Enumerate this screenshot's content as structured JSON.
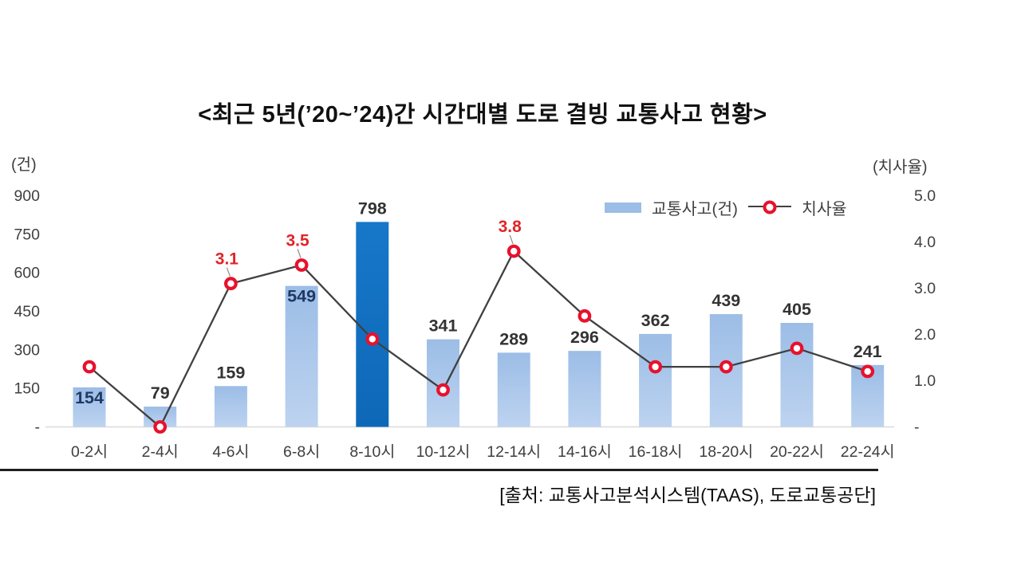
{
  "title": "<최근 5년(’20~’24)간 시간대별 도로 결빙 교통사고 현황>",
  "left_axis": {
    "unit": "(건)",
    "ticks": [
      "900",
      "750",
      "600",
      "450",
      "300",
      "150",
      "-"
    ],
    "values": [
      900,
      750,
      600,
      450,
      300,
      150,
      0
    ]
  },
  "right_axis": {
    "unit": "(치사율)",
    "ticks": [
      "5.0",
      "4.0",
      "3.0",
      "2.0",
      "1.0",
      "-"
    ],
    "values": [
      5,
      4,
      3,
      2,
      1,
      0
    ]
  },
  "legend": {
    "bars": "교통사고(건)",
    "line": "치사율"
  },
  "source": "[출처: 교통사고분석시스템(TAAS), 도로교통공단]",
  "colors": {
    "bar_top": "#9cbde6",
    "bar_bottom": "#bdd3f0",
    "bar_highlight_top": "#1777c9",
    "bar_highlight_bottom": "#0e68b8",
    "line": "#404040",
    "marker_ring": "#e8112d",
    "rate_label": "#e02528",
    "axis_line": "#d9d9d9",
    "leader_line": "#8a8a8a"
  },
  "chart_data": {
    "type": "bar+line combo",
    "title": "최근 5년(’20~’24)간 시간대별 도로 결빙 교통사고 현황",
    "categories": [
      "0-2시",
      "2-4시",
      "4-6시",
      "6-8시",
      "8-10시",
      "10-12시",
      "12-14시",
      "14-16시",
      "16-18시",
      "18-20시",
      "20-22시",
      "22-24시"
    ],
    "series": [
      {
        "name": "교통사고(건)",
        "type": "bar",
        "axis": "left",
        "values": [
          154,
          79,
          159,
          549,
          798,
          341,
          289,
          296,
          362,
          439,
          405,
          241
        ],
        "highlight_index": 4,
        "inside_label_indices": [
          0,
          3
        ]
      },
      {
        "name": "치사율",
        "type": "line",
        "axis": "right",
        "values": [
          1.3,
          0.0,
          3.1,
          3.5,
          1.9,
          0.8,
          3.8,
          2.4,
          1.3,
          1.3,
          1.7,
          1.2
        ],
        "point_labels": [
          {
            "index": 2,
            "text": "3.1"
          },
          {
            "index": 3,
            "text": "3.5"
          },
          {
            "index": 6,
            "text": "3.8"
          }
        ]
      }
    ],
    "ylim_left": [
      0,
      900
    ],
    "ylim_right": [
      0,
      5.0
    ],
    "grid": false,
    "legend_position": "top-right"
  }
}
